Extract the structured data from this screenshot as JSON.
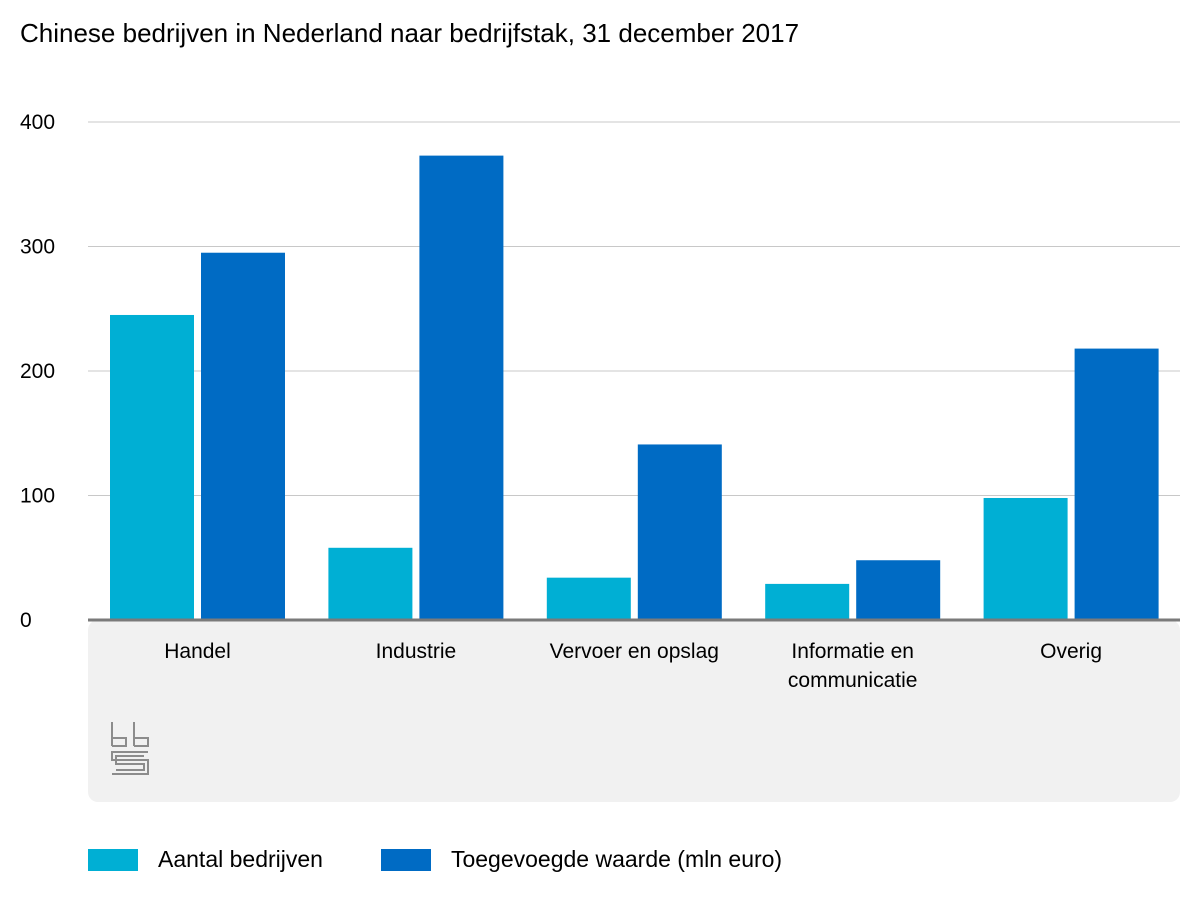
{
  "chart_data": {
    "type": "bar",
    "title": "Chinese bedrijven in Nederland naar bedrijfstak, 31 december 2017",
    "categories": [
      [
        "Handel"
      ],
      [
        "Industrie"
      ],
      [
        "Vervoer en opslag"
      ],
      [
        "Informatie en",
        "communicatie"
      ],
      [
        "Overig"
      ]
    ],
    "series": [
      {
        "name": "Aantal bedrijven",
        "color": "#00afd4",
        "values": [
          245,
          58,
          34,
          29,
          98
        ]
      },
      {
        "name": "Toegevoegde waarde (mln euro)",
        "color": "#006bc4",
        "values": [
          295,
          373,
          141,
          48,
          218
        ]
      }
    ],
    "yticks": [
      0,
      100,
      200,
      300,
      400
    ],
    "ylim": [
      0,
      400
    ],
    "grid": true,
    "legend_position": "bottom"
  },
  "logo": {
    "name": "cbs-logo-icon",
    "text": "cbs"
  }
}
